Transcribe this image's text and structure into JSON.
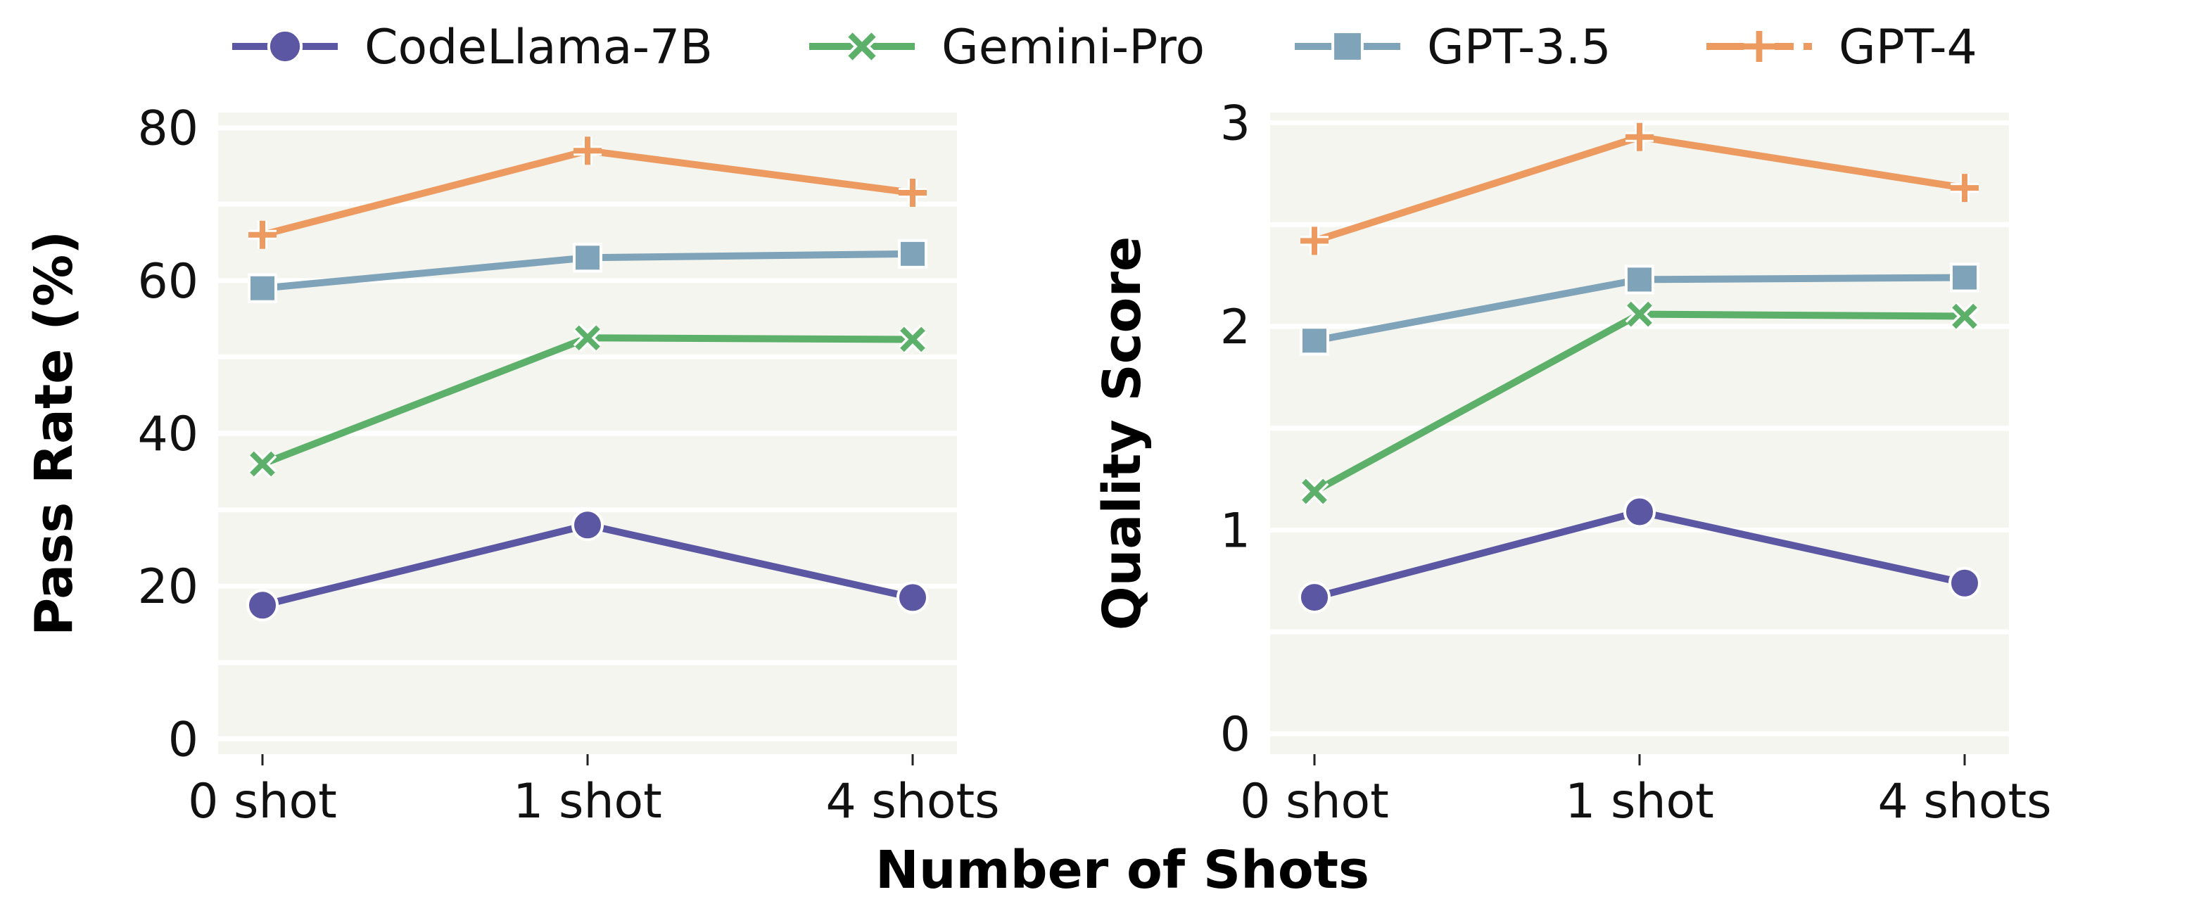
{
  "chart_data": {
    "type": "line",
    "shared_xlabel": "Number of Shots",
    "categories": [
      "0 shot",
      "1 shot",
      "4 shots"
    ],
    "legend": {
      "placement": "top",
      "entries": [
        {
          "name": "CodeLlama-7B",
          "color": "#5b57a2",
          "marker": "circle"
        },
        {
          "name": "Gemini-Pro",
          "color": "#5cb06a",
          "marker": "x"
        },
        {
          "name": "GPT-3.5",
          "color": "#7fa3b8",
          "marker": "square"
        },
        {
          "name": "GPT-4",
          "color": "#ec9a5f",
          "marker": "plus"
        }
      ]
    },
    "panels": [
      {
        "ylabel": "Pass Rate (%)",
        "ylim": [
          -2,
          82
        ],
        "yticks": [
          0,
          20,
          40,
          60,
          80
        ],
        "grid": "horizontal",
        "series": [
          {
            "name": "CodeLlama-7B",
            "values": [
              17.5,
              28.0,
              18.5
            ]
          },
          {
            "name": "Gemini-Pro",
            "values": [
              36.0,
              52.5,
              52.3
            ]
          },
          {
            "name": "GPT-3.5",
            "values": [
              59.0,
              63.0,
              63.5
            ]
          },
          {
            "name": "GPT-4",
            "values": [
              66.0,
              77.0,
              71.5
            ]
          }
        ]
      },
      {
        "ylabel": "Quality Score",
        "ylim": [
          -0.1,
          3.05
        ],
        "yticks": [
          0,
          1,
          2,
          3
        ],
        "grid": "horizontal",
        "series": [
          {
            "name": "CodeLlama-7B",
            "values": [
              0.67,
              1.09,
              0.74
            ]
          },
          {
            "name": "Gemini-Pro",
            "values": [
              1.19,
              2.06,
              2.05
            ]
          },
          {
            "name": "GPT-3.5",
            "values": [
              1.93,
              2.23,
              2.24
            ]
          },
          {
            "name": "GPT-4",
            "values": [
              2.42,
              2.93,
              2.68
            ]
          }
        ]
      }
    ]
  }
}
